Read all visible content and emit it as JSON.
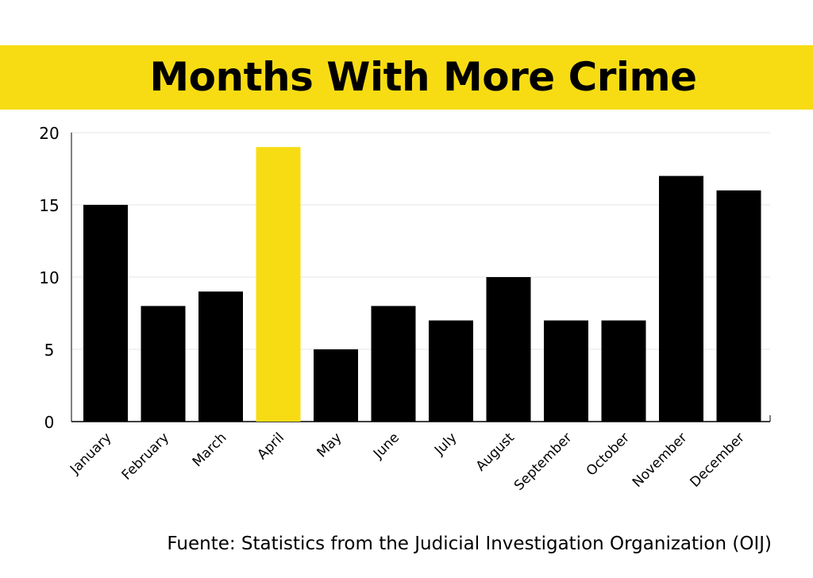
{
  "chart_data": {
    "type": "bar",
    "title": "Months With More Crime",
    "categories": [
      "January",
      "February",
      "March",
      "April",
      "May",
      "June",
      "July",
      "August",
      "September",
      "October",
      "November",
      "December"
    ],
    "values": [
      15,
      8,
      9,
      19,
      5,
      8,
      7,
      10,
      7,
      7,
      17,
      16
    ],
    "highlight": "April",
    "xlabel": "",
    "ylabel": "",
    "ylim": [
      0,
      20
    ],
    "yticks": [
      0,
      5,
      10,
      15,
      20
    ],
    "grid": true,
    "colors": {
      "bar": "#000000",
      "highlight": "#f7dc14",
      "grid": "#e6e6e6"
    },
    "source": "Fuente: Statistics from the Judicial Investigation Organization (OIJ)"
  }
}
